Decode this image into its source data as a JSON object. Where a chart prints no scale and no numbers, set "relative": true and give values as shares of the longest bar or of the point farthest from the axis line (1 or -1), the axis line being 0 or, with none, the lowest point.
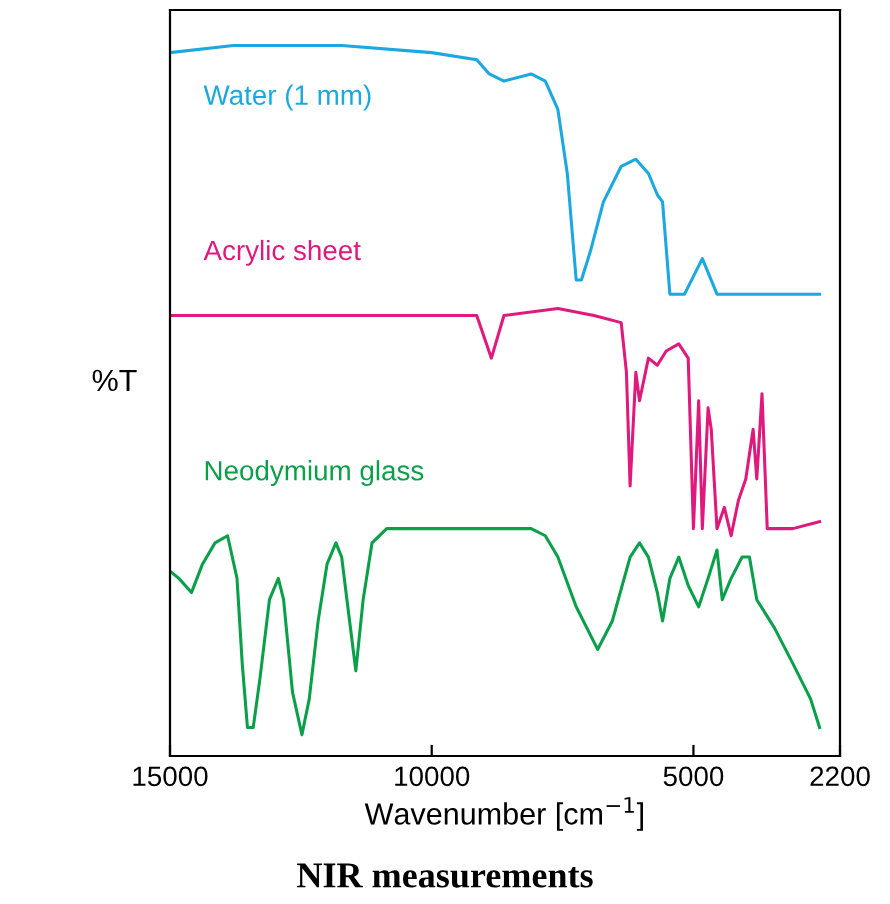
{
  "chart_data": {
    "type": "line",
    "title": "NIR measurements",
    "xlabel": "Wavenumber [cm$^{−1}$]",
    "ylabel": "%T",
    "relative": true,
    "tick_labels": "x",
    "grid": false,
    "legend": false,
    "marker": "none",
    "line_style": "solid",
    "xlim": [
      15000,
      2200
    ],
    "xticks": [
      15000,
      10000,
      5000,
      2200
    ],
    "series": [
      {
        "name": "Water (1 mm)",
        "color": "#1ba8e0",
        "x": [
          15000,
          13790,
          11720,
          10000,
          9140,
          8900,
          8620,
          8100,
          7830,
          7590,
          7410,
          7240,
          7140,
          6970,
          6720,
          6380,
          6100,
          5860,
          5690,
          5590,
          5450,
          5170,
          4830,
          4550,
          4140,
          2590
        ],
        "values": [
          0.99,
          1.0,
          1.0,
          0.99,
          0.98,
          0.96,
          0.95,
          0.96,
          0.95,
          0.91,
          0.82,
          0.67,
          0.67,
          0.71,
          0.78,
          0.83,
          0.84,
          0.82,
          0.79,
          0.78,
          0.65,
          0.65,
          0.7,
          0.65,
          0.65,
          0.65
        ]
      },
      {
        "name": "Acrylic sheet",
        "color": "#e0197d",
        "x": [
          15000,
          9140,
          8860,
          8620,
          7590,
          6900,
          6380,
          6280,
          6210,
          6100,
          6030,
          5860,
          5690,
          5520,
          5280,
          5100,
          5000,
          4900,
          4830,
          4720,
          4660,
          4550,
          4410,
          4280,
          4140,
          4000,
          3860,
          3790,
          3690,
          3590,
          3450,
          3100,
          2590
        ],
        "values": [
          0.62,
          0.62,
          0.56,
          0.62,
          0.63,
          0.62,
          0.61,
          0.54,
          0.38,
          0.54,
          0.5,
          0.56,
          0.55,
          0.57,
          0.58,
          0.56,
          0.32,
          0.5,
          0.32,
          0.49,
          0.46,
          0.32,
          0.35,
          0.31,
          0.36,
          0.39,
          0.46,
          0.39,
          0.51,
          0.32,
          0.32,
          0.32,
          0.33
        ]
      },
      {
        "name": "Neodymium glass",
        "color": "#0aa04a",
        "x": [
          15000,
          14830,
          14590,
          14380,
          14140,
          13900,
          13720,
          13620,
          13520,
          13410,
          13280,
          13100,
          12930,
          12830,
          12660,
          12480,
          12340,
          12170,
          12000,
          11830,
          11720,
          11620,
          11450,
          11310,
          11140,
          10860,
          10000,
          8970,
          8100,
          7830,
          7590,
          7240,
          6830,
          6550,
          6210,
          6030,
          5860,
          5690,
          5590,
          5450,
          5280,
          5100,
          4900,
          4720,
          4550,
          4450,
          4280,
          4070,
          3930,
          3790,
          3620,
          3450,
          3100,
          2760,
          2590
        ],
        "values": [
          0.26,
          0.25,
          0.23,
          0.27,
          0.3,
          0.31,
          0.25,
          0.13,
          0.04,
          0.04,
          0.11,
          0.22,
          0.25,
          0.22,
          0.09,
          0.03,
          0.08,
          0.19,
          0.27,
          0.3,
          0.28,
          0.22,
          0.12,
          0.22,
          0.3,
          0.32,
          0.32,
          0.32,
          0.32,
          0.31,
          0.28,
          0.21,
          0.15,
          0.19,
          0.28,
          0.3,
          0.28,
          0.23,
          0.19,
          0.25,
          0.28,
          0.24,
          0.21,
          0.25,
          0.29,
          0.22,
          0.25,
          0.28,
          0.28,
          0.22,
          0.2,
          0.18,
          0.13,
          0.08,
          0.04
        ]
      }
    ]
  }
}
